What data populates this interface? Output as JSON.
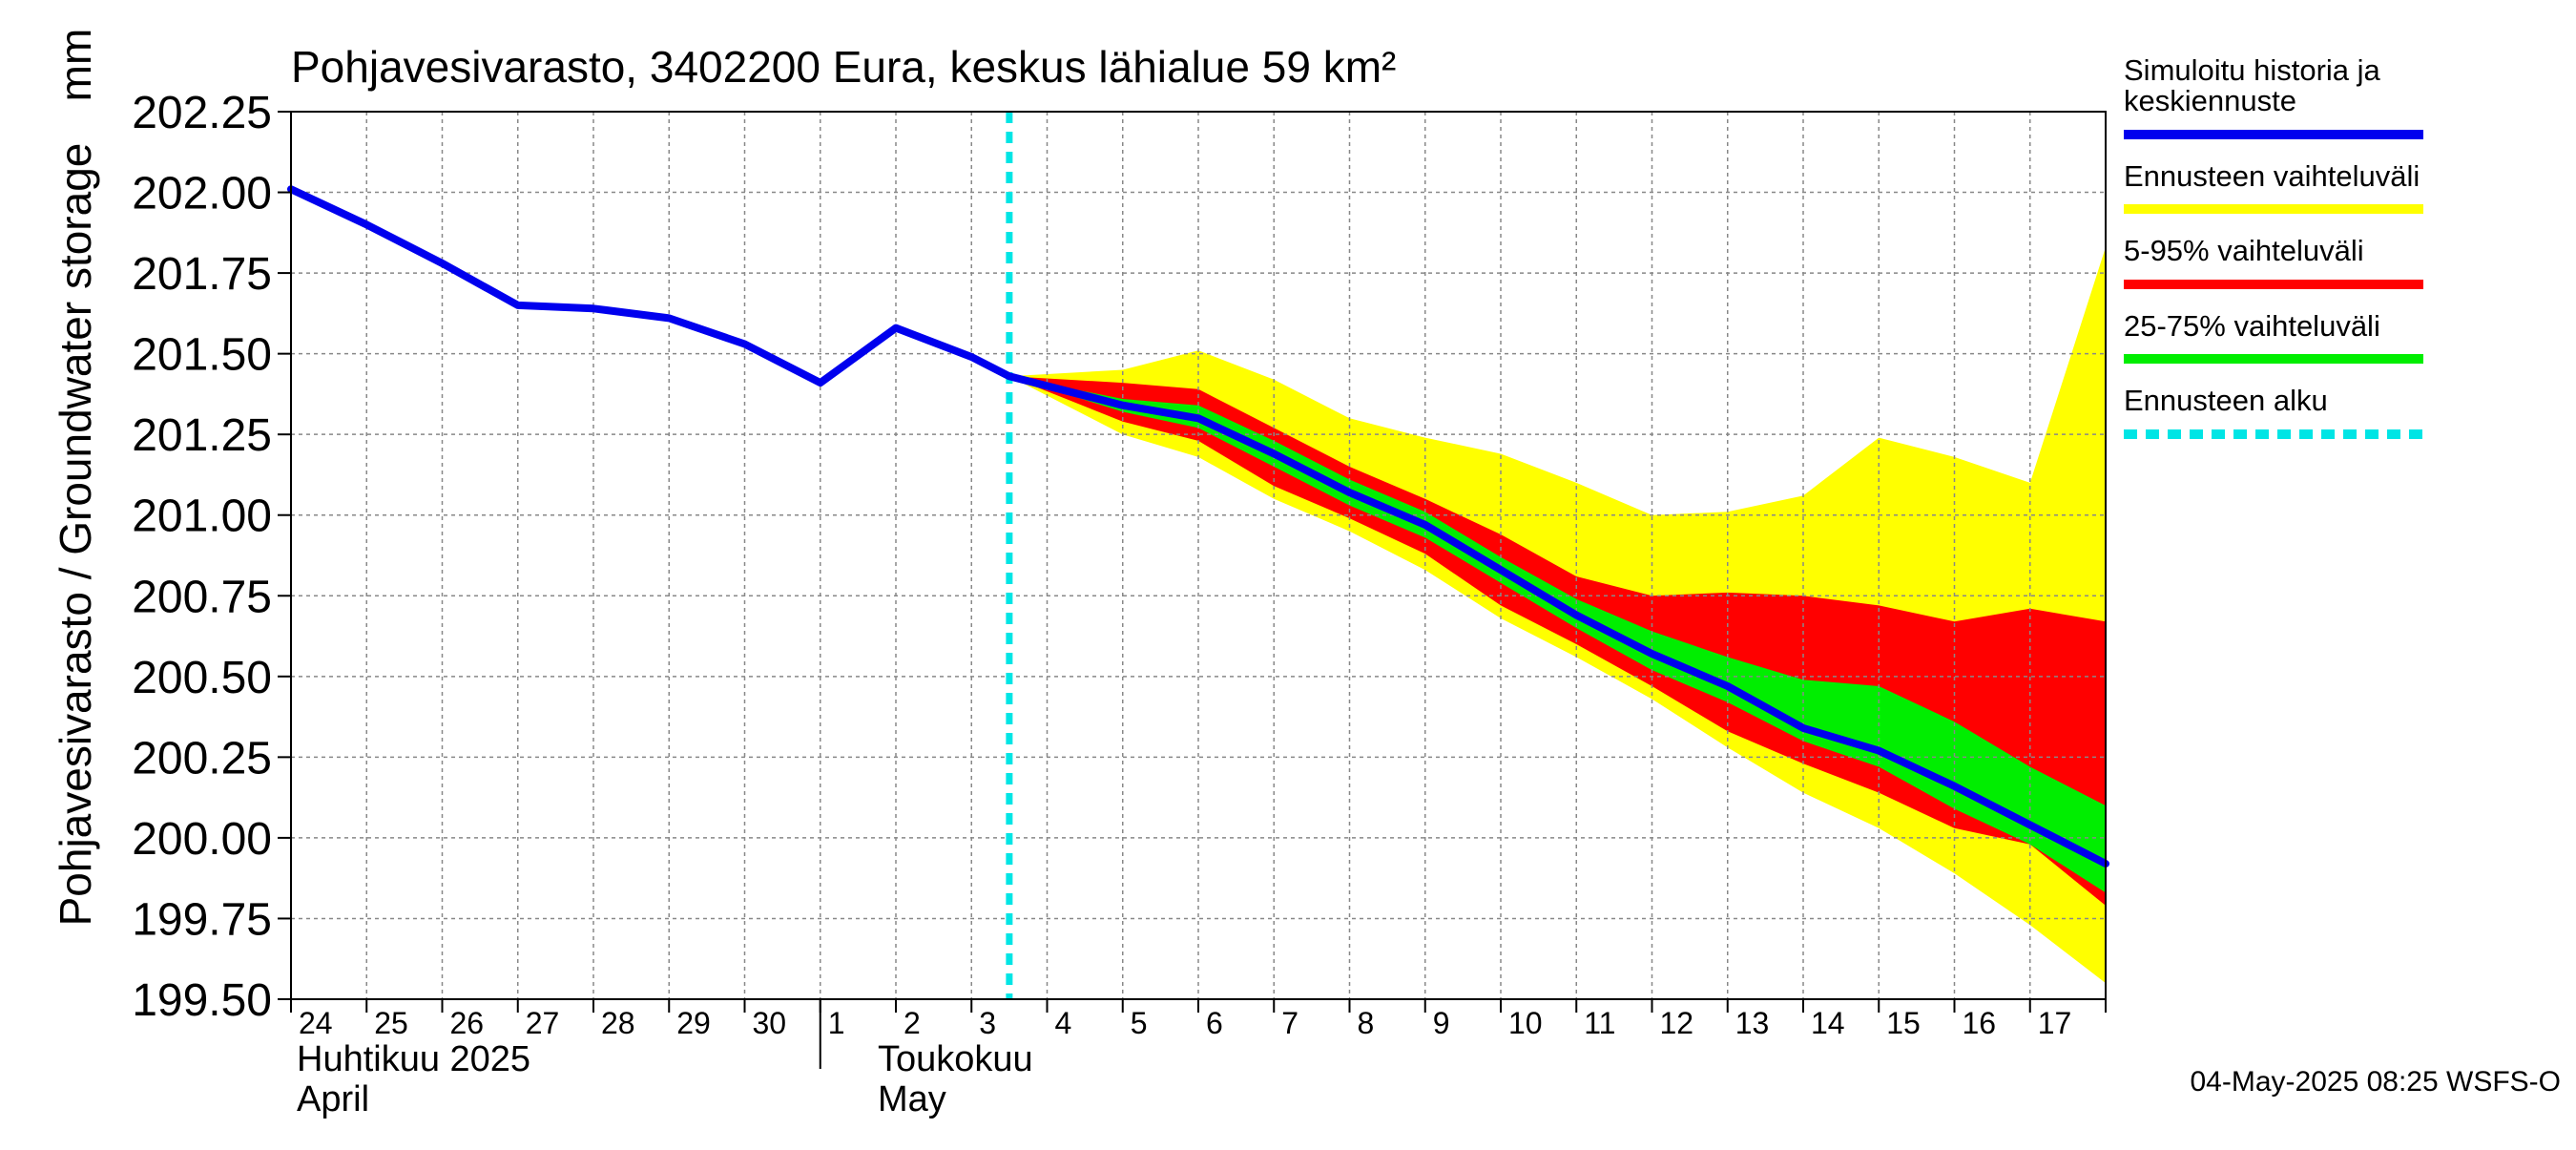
{
  "chart_data": {
    "type": "area",
    "title": "Pohjavesivarasto, 3402200 Eura, keskus lähialue 59 km²",
    "ylabel": "Pohjavesivarasto / Groundwater storage",
    "yunit": "mm",
    "ylim": [
      199.5,
      202.25
    ],
    "yticks": [
      "202.25",
      "202.00",
      "201.75",
      "201.50",
      "201.25",
      "201.00",
      "200.75",
      "200.50",
      "200.25",
      "200.00",
      "199.75",
      "199.50"
    ],
    "xlim": [
      "2025-04-24",
      "2025-05-18"
    ],
    "x_day_labels": [
      "24",
      "25",
      "26",
      "27",
      "28",
      "29",
      "30",
      "1",
      "2",
      "3",
      "4",
      "5",
      "6",
      "7",
      "8",
      "9",
      "10",
      "11",
      "12",
      "13",
      "14",
      "15",
      "16",
      "17"
    ],
    "x_month_labels": [
      {
        "fi": "Huhtikuu  2025",
        "en": "April"
      },
      {
        "fi": "Toukokuu",
        "en": "May"
      }
    ],
    "grid": true,
    "legend_position": "right",
    "forecast_start": "2025-05-03 12:00",
    "history": {
      "name": "Simuloitu historia ja keskiennuste",
      "x": [
        "2025-04-24",
        "2025-04-25",
        "2025-04-26",
        "2025-04-27",
        "2025-04-28",
        "2025-04-29",
        "2025-04-30",
        "2025-05-01",
        "2025-05-02",
        "2025-05-03",
        "2025-05-03 12:00"
      ],
      "y": [
        202.01,
        201.9,
        201.78,
        201.65,
        201.64,
        201.61,
        201.53,
        201.41,
        201.58,
        201.49,
        201.43
      ]
    },
    "forecast": {
      "x": [
        "2025-05-03 12:00",
        "2025-05-05",
        "2025-05-06",
        "2025-05-07",
        "2025-05-08",
        "2025-05-09",
        "2025-05-10",
        "2025-05-11",
        "2025-05-12",
        "2025-05-13",
        "2025-05-14",
        "2025-05-15",
        "2025-05-16",
        "2025-05-17",
        "2025-05-18"
      ],
      "median": [
        201.43,
        201.34,
        201.3,
        201.19,
        201.07,
        200.97,
        200.83,
        200.69,
        200.57,
        200.47,
        200.34,
        200.27,
        200.16,
        200.04,
        199.92
      ],
      "min": [
        201.43,
        201.25,
        201.18,
        201.05,
        200.95,
        200.83,
        200.68,
        200.56,
        200.43,
        200.28,
        200.14,
        200.03,
        199.89,
        199.73,
        199.55
      ],
      "max": [
        201.43,
        201.45,
        201.51,
        201.42,
        201.3,
        201.24,
        201.19,
        201.1,
        201.0,
        201.01,
        201.06,
        201.24,
        201.18,
        201.1,
        201.83
      ],
      "p05": [
        201.43,
        201.29,
        201.23,
        201.09,
        200.99,
        200.88,
        200.72,
        200.6,
        200.47,
        200.33,
        200.23,
        200.14,
        200.03,
        199.98,
        199.79
      ],
      "p95": [
        201.43,
        201.41,
        201.39,
        201.27,
        201.15,
        201.05,
        200.94,
        200.81,
        200.75,
        200.76,
        200.75,
        200.72,
        200.67,
        200.71,
        200.67
      ],
      "p25": [
        201.43,
        201.32,
        201.27,
        201.15,
        201.03,
        200.93,
        200.79,
        200.65,
        200.52,
        200.42,
        200.3,
        200.22,
        200.09,
        199.98,
        199.83
      ],
      "p75": [
        201.43,
        201.36,
        201.34,
        201.23,
        201.11,
        201.01,
        200.87,
        200.74,
        200.64,
        200.56,
        200.49,
        200.47,
        200.36,
        200.22,
        200.1
      ]
    },
    "legend": [
      {
        "label": "Simuloitu historia ja\nkeskiennuste",
        "color": "#0000ee",
        "style": "solid"
      },
      {
        "label": "Ennusteen vaihteluväli",
        "color": "#ffff00",
        "style": "solid"
      },
      {
        "label": "5-95% vaihteluväli",
        "color": "#ff0000",
        "style": "solid"
      },
      {
        "label": "25-75% vaihteluväli",
        "color": "#00ee00",
        "style": "solid"
      },
      {
        "label": "Ennusteen alku",
        "color": "#00e5e5",
        "style": "dashed"
      }
    ],
    "colors": {
      "history": "#0000ee",
      "range": "#ffff00",
      "p5_95": "#ff0000",
      "p25_75": "#00ee00",
      "forecast_start": "#00e5e5",
      "grid": "#888888"
    },
    "timestamp": "04-May-2025 08:25 WSFS-O"
  }
}
